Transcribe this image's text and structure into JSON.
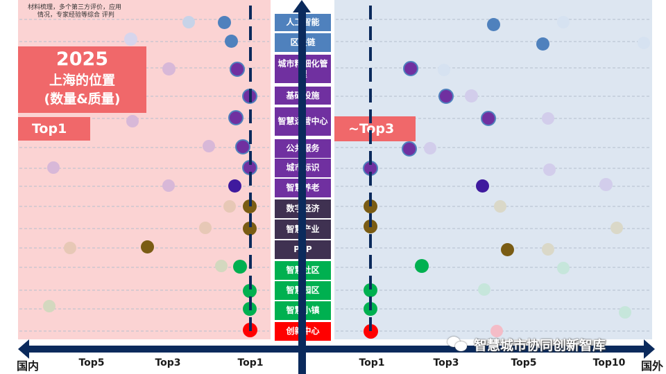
{
  "note": {
    "line1": "材料梳理，多个第三方评价，应用",
    "line2": "情况，专家经验等综合 评判"
  },
  "title_box": {
    "year": "2025",
    "line1": "上海的位置",
    "line2": "(数量&质量)"
  },
  "left_badge": "Top1",
  "right_badge": "~Top3",
  "axis": {
    "left_end": "国内",
    "right_end": "国外",
    "left_ticks": [
      "Top5",
      "Top3",
      "Top1"
    ],
    "right_ticks": [
      "Top1",
      "Top3",
      "Top5",
      "Top10"
    ]
  },
  "categories": [
    {
      "label": "人工智能",
      "color": "#4f81bd"
    },
    {
      "label": "区块链",
      "color": "#4f81bd"
    },
    {
      "label": "城市精细化管理",
      "color": "#7030a0"
    },
    {
      "label": "基础设施",
      "color": "#7030a0"
    },
    {
      "label": "智慧运营中心",
      "color": "#7030a0"
    },
    {
      "label": "公共服务",
      "color": "#7030a0"
    },
    {
      "label": "城市标识",
      "color": "#7030a0"
    },
    {
      "label": "智慧养老",
      "color": "#7030a0"
    },
    {
      "label": "数字经济",
      "color": "#3f3151"
    },
    {
      "label": "智慧产业",
      "color": "#3f3151"
    },
    {
      "label": "PPP",
      "color": "#3f3151"
    },
    {
      "label": "智慧社区",
      "color": "#00b050"
    },
    {
      "label": "智慧园区",
      "color": "#00b050"
    },
    {
      "label": "智慧小镇",
      "color": "#00b050"
    },
    {
      "label": "创新中心",
      "color": "#ff0000"
    }
  ],
  "watermark": "智慧城市协同创新智库",
  "colors": {
    "left_panel": "#fbd3d3",
    "right_panel": "#dde6f1",
    "axis": "#0b2a5c",
    "badge": "#f0686a"
  }
}
